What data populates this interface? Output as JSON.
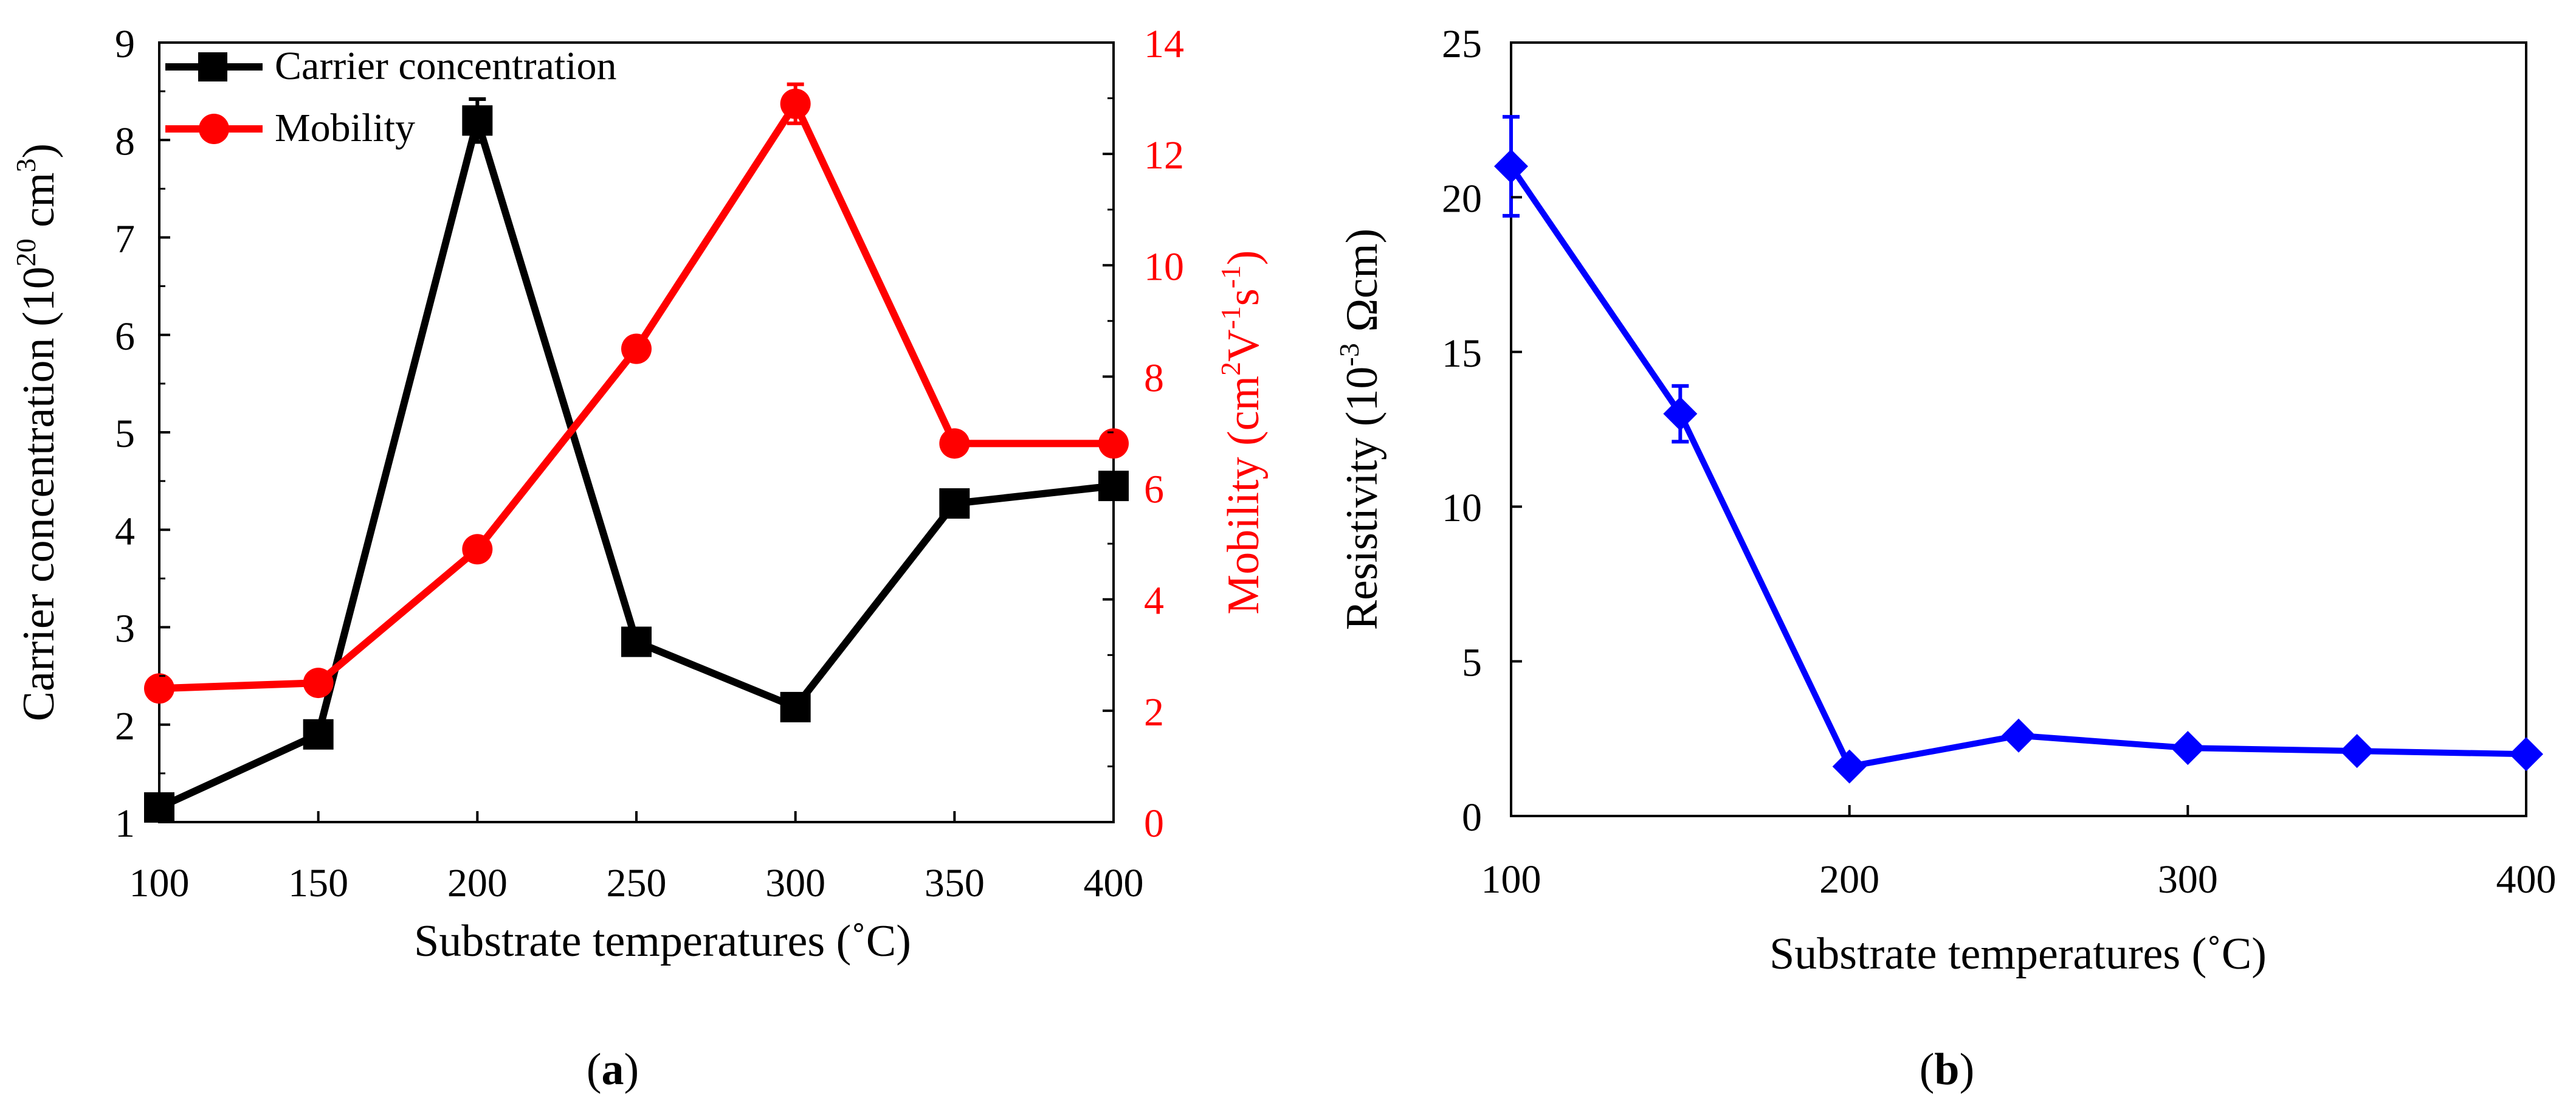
{
  "chart_data": [
    {
      "panel_label": "a",
      "caption": "(a)",
      "type": "line",
      "x": [
        100,
        150,
        200,
        250,
        300,
        350,
        400
      ],
      "xlabel": "Substrate temperatures (˚C)",
      "xlim": [
        100,
        400
      ],
      "xticks": [
        "100",
        "150",
        "200",
        "250",
        "300",
        "350",
        "400"
      ],
      "ylabel_left": {
        "main": "Carrier concentration (10",
        "sup": "20",
        "rest": " cm",
        "sup2": "3",
        "end": ")"
      },
      "ylim_left": [
        1,
        9
      ],
      "yticks_left": [
        "1",
        "2",
        "3",
        "4",
        "5",
        "6",
        "7",
        "8",
        "9"
      ],
      "ylabel_right": {
        "main": "Mobility (cm",
        "sup": "2",
        "mid": "V",
        "sup2": "-1",
        "mid2": "s",
        "sup3": "-1",
        "end": ")"
      },
      "ylim_right": [
        0,
        14
      ],
      "yticks_right": [
        "0",
        "2",
        "4",
        "6",
        "8",
        "10",
        "12",
        "14"
      ],
      "legend_position": "top-left",
      "series": [
        {
          "name": "Carrier concentration",
          "axis": "left",
          "color": "#000000",
          "marker": "square",
          "values": [
            1.15,
            1.9,
            8.2,
            2.85,
            2.18,
            4.27,
            4.45
          ],
          "errors": [
            0,
            0,
            0.22,
            0.1,
            0,
            0,
            0.1
          ]
        },
        {
          "name": "Mobility",
          "axis": "right",
          "color": "#ff0000",
          "marker": "circle",
          "values": [
            2.4,
            2.5,
            4.9,
            8.5,
            12.9,
            6.8,
            6.8
          ],
          "errors": [
            0,
            0,
            0,
            0.15,
            0.35,
            0.1,
            0
          ]
        }
      ]
    },
    {
      "panel_label": "b",
      "caption": "(b)",
      "type": "line",
      "x": [
        100,
        150,
        200,
        250,
        300,
        350,
        400
      ],
      "xlabel": "Substrate temperatures (˚C)",
      "xlim": [
        100,
        400
      ],
      "xticks": [
        "100",
        "200",
        "300",
        "400"
      ],
      "ylabel": {
        "main": "Resistivity (10",
        "sup": "-3",
        "end": " Ωcm)"
      },
      "ylim": [
        0,
        25
      ],
      "yticks": [
        "0",
        "5",
        "10",
        "15",
        "20",
        "25"
      ],
      "series": [
        {
          "name": "Resistivity",
          "color": "#0000ff",
          "marker": "diamond",
          "values": [
            21,
            13,
            1.6,
            2.6,
            2.2,
            2.1,
            2.0
          ],
          "errors": [
            1.6,
            0.9,
            0,
            0,
            0,
            0,
            0
          ]
        }
      ]
    }
  ]
}
